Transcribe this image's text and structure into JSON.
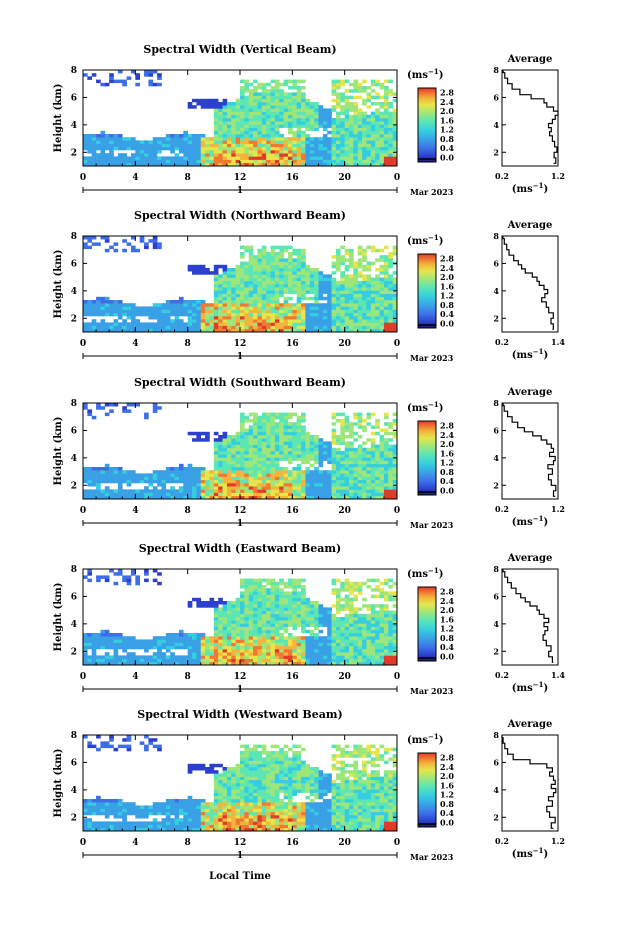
{
  "figure": {
    "xlabel": "Local Time",
    "colorbar_unit": "(ms",
    "colorbar_unit_exp": "−1",
    "colorbar_unit_close": ")",
    "avg_title": "Average",
    "avg_unit": "(ms",
    "avg_unit_exp": "−1",
    "avg_unit_close": ")",
    "date_label": "Mar 2023",
    "date_tick": "1",
    "ylabel": "Height (km)"
  },
  "chart_data": [
    {
      "type": "heatmap",
      "title": "Spectral Width (Vertical Beam)",
      "ylabel": "Height (km)",
      "xlabel": "Local Time",
      "x_ticks": [
        "0",
        "4",
        "8",
        "12",
        "16",
        "20",
        "0"
      ],
      "y_ticks": [
        "2",
        "4",
        "6",
        "8"
      ],
      "xlim": [
        0,
        24
      ],
      "ylim": [
        1,
        8
      ],
      "colorbar": {
        "unit": "(ms−1)",
        "ticks": [
          "0.0",
          "0.4",
          "0.8",
          "1.2",
          "1.6",
          "2.0",
          "2.4",
          "2.8"
        ],
        "range": [
          0.0,
          2.8
        ]
      },
      "average_profile": {
        "title": "Average",
        "xlabel": "(ms−1)",
        "x_ticks": [
          "0.2",
          "1.2"
        ],
        "xlim": [
          0.2,
          1.2
        ],
        "y_ticks": [
          "2",
          "4",
          "6",
          "8"
        ],
        "x": [
          1.12,
          1.16,
          1.13,
          1.18,
          1.14,
          1.1,
          1.05,
          1.08,
          1.03,
          1.1,
          1.15,
          1.2,
          1.12,
          1.0,
          0.95,
          0.72,
          0.52,
          0.38,
          0.3,
          0.25,
          0.22
        ],
        "y": [
          1.2,
          1.6,
          2.0,
          2.4,
          2.8,
          3.2,
          3.5,
          3.8,
          4.1,
          4.4,
          4.7,
          5.0,
          5.3,
          5.6,
          5.9,
          6.2,
          6.6,
          7.0,
          7.4,
          7.8,
          8.0
        ]
      }
    },
    {
      "type": "heatmap",
      "title": "Spectral Width (Northward Beam)",
      "ylabel": "Height (km)",
      "xlabel": "Local Time",
      "x_ticks": [
        "0",
        "4",
        "8",
        "12",
        "16",
        "20",
        "0"
      ],
      "y_ticks": [
        "2",
        "4",
        "6",
        "8"
      ],
      "xlim": [
        0,
        24
      ],
      "ylim": [
        1,
        8
      ],
      "colorbar": {
        "unit": "(ms−1)",
        "ticks": [
          "0.0",
          "0.4",
          "0.8",
          "1.2",
          "1.6",
          "2.0",
          "2.4",
          "2.8"
        ],
        "range": [
          0.0,
          2.8
        ]
      },
      "average_profile": {
        "title": "Average",
        "xlabel": "(ms−1)",
        "x_ticks": [
          "0.2",
          "1.4"
        ],
        "xlim": [
          0.2,
          1.4
        ],
        "y_ticks": [
          "2",
          "4",
          "6",
          "8"
        ],
        "x": [
          1.28,
          1.3,
          1.25,
          1.3,
          1.2,
          1.15,
          1.05,
          1.12,
          1.18,
          1.1,
          1.0,
          0.95,
          0.85,
          0.7,
          0.62,
          0.55,
          0.45,
          0.35,
          0.3,
          0.25,
          0.22
        ],
        "y": [
          1.2,
          1.6,
          2.0,
          2.4,
          2.8,
          3.2,
          3.5,
          3.8,
          4.1,
          4.4,
          4.7,
          5.0,
          5.3,
          5.6,
          5.9,
          6.2,
          6.6,
          7.0,
          7.4,
          7.8,
          8.0
        ]
      }
    },
    {
      "type": "heatmap",
      "title": "Spectral Width (Southward Beam)",
      "ylabel": "Height (km)",
      "xlabel": "Local Time",
      "x_ticks": [
        "0",
        "4",
        "8",
        "12",
        "16",
        "20",
        "0"
      ],
      "y_ticks": [
        "2",
        "4",
        "6",
        "8"
      ],
      "xlim": [
        0,
        24
      ],
      "ylim": [
        1,
        8
      ],
      "colorbar": {
        "unit": "(ms−1)",
        "ticks": [
          "0.0",
          "0.4",
          "0.8",
          "1.2",
          "1.6",
          "2.0",
          "2.4",
          "2.8"
        ],
        "range": [
          0.0,
          2.8
        ]
      },
      "average_profile": {
        "title": "Average",
        "xlabel": "(ms−1)",
        "x_ticks": [
          "0.2",
          "1.2"
        ],
        "xlim": [
          0.2,
          1.2
        ],
        "y_ticks": [
          "2",
          "4",
          "6",
          "8"
        ],
        "x": [
          1.15,
          1.12,
          1.16,
          1.08,
          1.03,
          1.1,
          1.02,
          1.12,
          1.15,
          1.05,
          1.12,
          1.08,
          1.0,
          0.9,
          0.75,
          0.6,
          0.48,
          0.38,
          0.3,
          0.24,
          0.22
        ],
        "y": [
          1.2,
          1.6,
          2.0,
          2.4,
          2.8,
          3.2,
          3.5,
          3.8,
          4.1,
          4.4,
          4.7,
          5.0,
          5.3,
          5.6,
          5.9,
          6.2,
          6.6,
          7.0,
          7.4,
          7.8,
          8.0
        ]
      }
    },
    {
      "type": "heatmap",
      "title": "Spectral Width (Eastward Beam)",
      "ylabel": "Height (km)",
      "xlabel": "Local Time",
      "x_ticks": [
        "0",
        "4",
        "8",
        "12",
        "16",
        "20",
        "0"
      ],
      "y_ticks": [
        "2",
        "4",
        "6",
        "8"
      ],
      "xlim": [
        0,
        24
      ],
      "ylim": [
        1,
        8
      ],
      "colorbar": {
        "unit": "(ms−1)",
        "ticks": [
          "0.0",
          "0.4",
          "0.8",
          "1.2",
          "1.6",
          "2.0",
          "2.4",
          "2.8"
        ],
        "range": [
          0.0,
          2.8
        ]
      },
      "average_profile": {
        "title": "Average",
        "xlabel": "(ms−1)",
        "x_ticks": [
          "0.2",
          "1.4"
        ],
        "xlim": [
          0.2,
          1.4
        ],
        "y_ticks": [
          "2",
          "4",
          "6",
          "8"
        ],
        "x": [
          1.3,
          1.28,
          1.2,
          1.25,
          1.15,
          1.08,
          1.12,
          1.18,
          1.1,
          1.2,
          1.1,
          1.0,
          0.95,
          0.8,
          0.7,
          0.6,
          0.5,
          0.4,
          0.32,
          0.26,
          0.22
        ],
        "y": [
          1.2,
          1.6,
          2.0,
          2.4,
          2.8,
          3.2,
          3.5,
          3.8,
          4.1,
          4.4,
          4.7,
          5.0,
          5.3,
          5.6,
          5.9,
          6.2,
          6.6,
          7.0,
          7.4,
          7.8,
          8.0
        ]
      }
    },
    {
      "type": "heatmap",
      "title": "Spectral Width (Westward Beam)",
      "ylabel": "Height (km)",
      "xlabel": "Local Time",
      "x_ticks": [
        "0",
        "4",
        "8",
        "12",
        "16",
        "20",
        "0"
      ],
      "y_ticks": [
        "2",
        "4",
        "6",
        "8"
      ],
      "xlim": [
        0,
        24
      ],
      "ylim": [
        1,
        8
      ],
      "colorbar": {
        "unit": "(ms−1)",
        "ticks": [
          "0.0",
          "0.4",
          "0.8",
          "1.2",
          "1.6",
          "2.0",
          "2.4",
          "2.8"
        ],
        "range": [
          0.0,
          2.8
        ]
      },
      "average_profile": {
        "title": "Average",
        "xlabel": "(ms−1)",
        "x_ticks": [
          "0.2",
          "1.2"
        ],
        "xlim": [
          0.2,
          1.2
        ],
        "y_ticks": [
          "2",
          "4",
          "6",
          "8"
        ],
        "x": [
          1.12,
          1.08,
          1.15,
          1.05,
          1.0,
          1.1,
          1.03,
          1.12,
          1.16,
          1.08,
          1.15,
          1.12,
          1.05,
          1.1,
          1.0,
          0.7,
          0.4,
          0.3,
          0.25,
          0.22,
          0.2
        ],
        "y": [
          1.2,
          1.6,
          2.0,
          2.4,
          2.8,
          3.2,
          3.5,
          3.8,
          4.1,
          4.4,
          4.7,
          5.0,
          5.3,
          5.6,
          5.9,
          6.2,
          6.6,
          7.0,
          7.4,
          7.8,
          8.0
        ]
      }
    }
  ],
  "colors": {
    "colormap": [
      "#1a1a6e",
      "#2c3fcf",
      "#3d6ee8",
      "#39a0e6",
      "#35cde0",
      "#5ce6b4",
      "#9fe67a",
      "#e6e64a",
      "#f2b43c",
      "#f07832",
      "#e03a28"
    ],
    "line": "#000000"
  }
}
